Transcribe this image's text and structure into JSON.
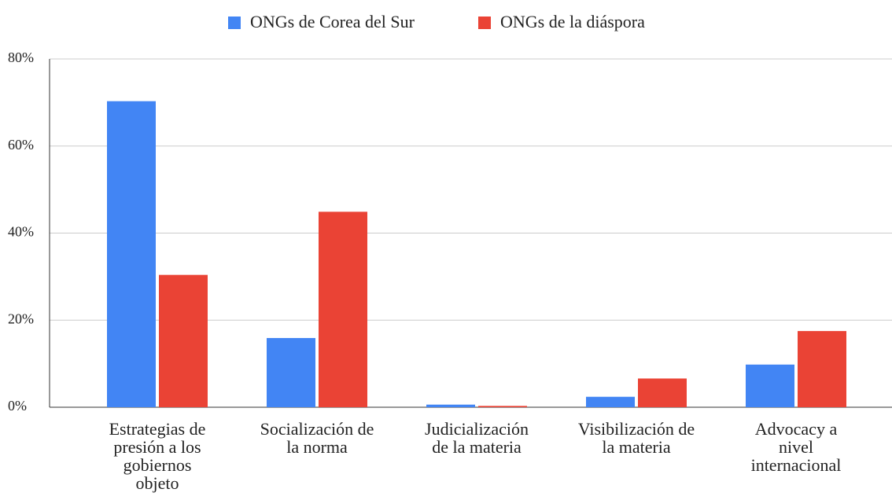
{
  "chart_data": {
    "type": "bar",
    "categories": [
      "Estrategias de\npresión a los\ngobiernos\nobjeto",
      "Socialización de\nla norma",
      "Judicialización\nde la materia",
      "Visibilización de\nla materia",
      "Advocacy a\nnivel\ninternacional"
    ],
    "series": [
      {
        "name": "ONGs de Corea del Sur",
        "color": "#4285f4",
        "values": [
          70.3,
          15.9,
          0.6,
          2.4,
          9.8
        ]
      },
      {
        "name": "ONGs de la diáspora",
        "color": "#ea4335",
        "values": [
          30.4,
          44.9,
          0.3,
          6.6,
          17.5
        ]
      }
    ],
    "ylim": [
      0,
      80
    ],
    "yticks": [
      {
        "value": 0,
        "label": "0%"
      },
      {
        "value": 20,
        "label": "20%"
      },
      {
        "value": 40,
        "label": "40%"
      },
      {
        "value": 60,
        "label": "60%"
      },
      {
        "value": 80,
        "label": "80%"
      }
    ],
    "grid": true,
    "legend": "top"
  }
}
